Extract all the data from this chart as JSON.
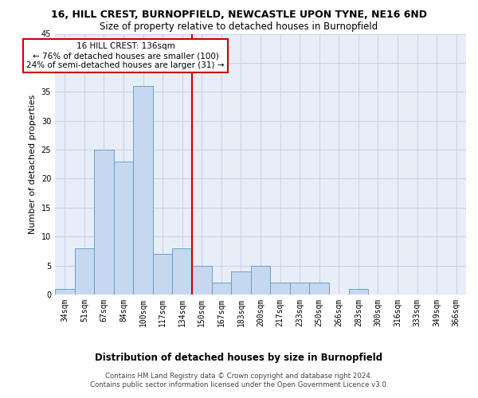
{
  "title": "16, HILL CREST, BURNOPFIELD, NEWCASTLE UPON TYNE, NE16 6ND",
  "subtitle": "Size of property relative to detached houses in Burnopfield",
  "xlabel": "Distribution of detached houses by size in Burnopfield",
  "ylabel": "Number of detached properties",
  "categories": [
    "34sqm",
    "51sqm",
    "67sqm",
    "84sqm",
    "100sqm",
    "117sqm",
    "134sqm",
    "150sqm",
    "167sqm",
    "183sqm",
    "200sqm",
    "217sqm",
    "233sqm",
    "250sqm",
    "266sqm",
    "283sqm",
    "300sqm",
    "316sqm",
    "333sqm",
    "349sqm",
    "366sqm"
  ],
  "values": [
    1,
    8,
    25,
    23,
    36,
    7,
    8,
    5,
    2,
    4,
    5,
    2,
    2,
    2,
    0,
    1,
    0,
    0,
    0,
    0,
    0
  ],
  "bar_color": "#c5d8f0",
  "bar_edge_color": "#6a9fc8",
  "vline_x_index": 6.5,
  "vline_color": "#cc0000",
  "annotation_text": "16 HILL CREST: 136sqm\n← 76% of detached houses are smaller (100)\n24% of semi-detached houses are larger (31) →",
  "annotation_box_color": "#ffffff",
  "annotation_box_edge_color": "#cc0000",
  "ylim": [
    0,
    45
  ],
  "yticks": [
    0,
    5,
    10,
    15,
    20,
    25,
    30,
    35,
    40,
    45
  ],
  "footer": "Contains HM Land Registry data © Crown copyright and database right 2024.\nContains public sector information licensed under the Open Government Licence v3.0.",
  "bg_color": "#ffffff",
  "ax_bg_color": "#e8eef8",
  "grid_color": "#c8d4e8",
  "title_fontsize": 9,
  "subtitle_fontsize": 8.5,
  "ylabel_fontsize": 8,
  "xlabel_fontsize": 8.5,
  "tick_fontsize": 7,
  "footer_fontsize": 6.2,
  "annotation_fontsize": 7.5
}
